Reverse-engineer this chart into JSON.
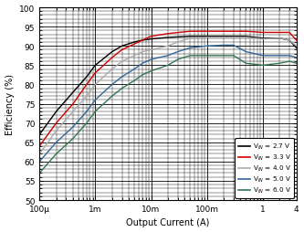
{
  "title": "",
  "xlabel": "Output Current (A)",
  "ylabel": "Efficiency (%)",
  "ylim": [
    50,
    100
  ],
  "xlim": [
    0.0001,
    4
  ],
  "yticks": [
    50,
    55,
    60,
    65,
    70,
    75,
    80,
    85,
    90,
    95,
    100
  ],
  "background_color": "#ffffff",
  "grid_color": "#000000",
  "legend": [
    {
      "label": "V$_{IN}$ = 2.7 V",
      "color": "#000000",
      "lw": 1.2
    },
    {
      "label": "V$_{IN}$ = 3.3 V",
      "color": "#cc0000",
      "lw": 1.2
    },
    {
      "label": "V$_{IN}$ = 4.0 V",
      "color": "#aaaaaa",
      "lw": 1.2
    },
    {
      "label": "V$_{IN}$ = 5.0 V",
      "color": "#336699",
      "lw": 1.2
    },
    {
      "label": "V$_{IN}$ = 6.0 V",
      "color": "#337755",
      "lw": 1.2
    }
  ],
  "curves": {
    "vin27": {
      "color": "#000000",
      "x": [
        0.0001,
        0.0002,
        0.0004,
        0.0007,
        0.001,
        0.002,
        0.003,
        0.005,
        0.007,
        0.01,
        0.02,
        0.05,
        0.1,
        0.2,
        0.5,
        1.0,
        2.0,
        3.0,
        4.0
      ],
      "y": [
        67,
        73,
        78,
        82,
        85,
        88.5,
        90,
        91,
        91.5,
        91.8,
        92.2,
        92.5,
        92.5,
        92.5,
        92.5,
        92.0,
        92.0,
        91.5,
        89.5
      ]
    },
    "vin33": {
      "color": "#cc0000",
      "x": [
        0.0001,
        0.0002,
        0.0004,
        0.0007,
        0.001,
        0.002,
        0.003,
        0.005,
        0.007,
        0.01,
        0.02,
        0.05,
        0.1,
        0.2,
        0.5,
        1.0,
        2.0,
        3.0,
        4.0
      ],
      "y": [
        64,
        70,
        75,
        80,
        83,
        87,
        89,
        90.5,
        91.5,
        92.5,
        93.2,
        93.8,
        93.8,
        93.8,
        93.8,
        93.5,
        93.5,
        93.5,
        91.5
      ]
    },
    "vin40": {
      "color": "#aaaaaa",
      "x": [
        0.0001,
        0.0002,
        0.0004,
        0.0007,
        0.001,
        0.002,
        0.003,
        0.005,
        0.007,
        0.01,
        0.02,
        0.03,
        0.05,
        0.1,
        0.2,
        0.5,
        1.0,
        2.0,
        3.0,
        4.0
      ],
      "y": [
        62,
        68,
        73,
        77,
        80,
        84,
        86,
        87.5,
        88.5,
        89,
        90,
        91,
        92,
        92.2,
        92.2,
        92.2,
        91.8,
        92.0,
        91.5,
        90.0
      ]
    },
    "vin50": {
      "color": "#336699",
      "x": [
        0.0001,
        0.0002,
        0.0004,
        0.0007,
        0.001,
        0.002,
        0.003,
        0.005,
        0.007,
        0.01,
        0.02,
        0.03,
        0.05,
        0.1,
        0.2,
        0.3,
        0.5,
        1.0,
        2.0,
        3.0,
        4.0
      ],
      "y": [
        60,
        65,
        69,
        73,
        76,
        80,
        82,
        84,
        85.5,
        86.5,
        87.5,
        88.5,
        89.5,
        90.0,
        90.2,
        90.2,
        88.5,
        87.5,
        87.5,
        87.5,
        87.0
      ]
    },
    "vin60": {
      "color": "#337755",
      "x": [
        0.0001,
        0.0002,
        0.0004,
        0.0007,
        0.001,
        0.002,
        0.003,
        0.005,
        0.007,
        0.01,
        0.02,
        0.03,
        0.05,
        0.1,
        0.2,
        0.3,
        0.5,
        1.0,
        2.0,
        3.0,
        4.0
      ],
      "y": [
        57,
        62,
        66,
        70,
        73,
        77,
        79,
        81,
        82.5,
        83.5,
        85,
        86.5,
        87.5,
        87.5,
        87.5,
        87.5,
        85.5,
        85.0,
        85.5,
        86.0,
        85.5
      ]
    }
  }
}
